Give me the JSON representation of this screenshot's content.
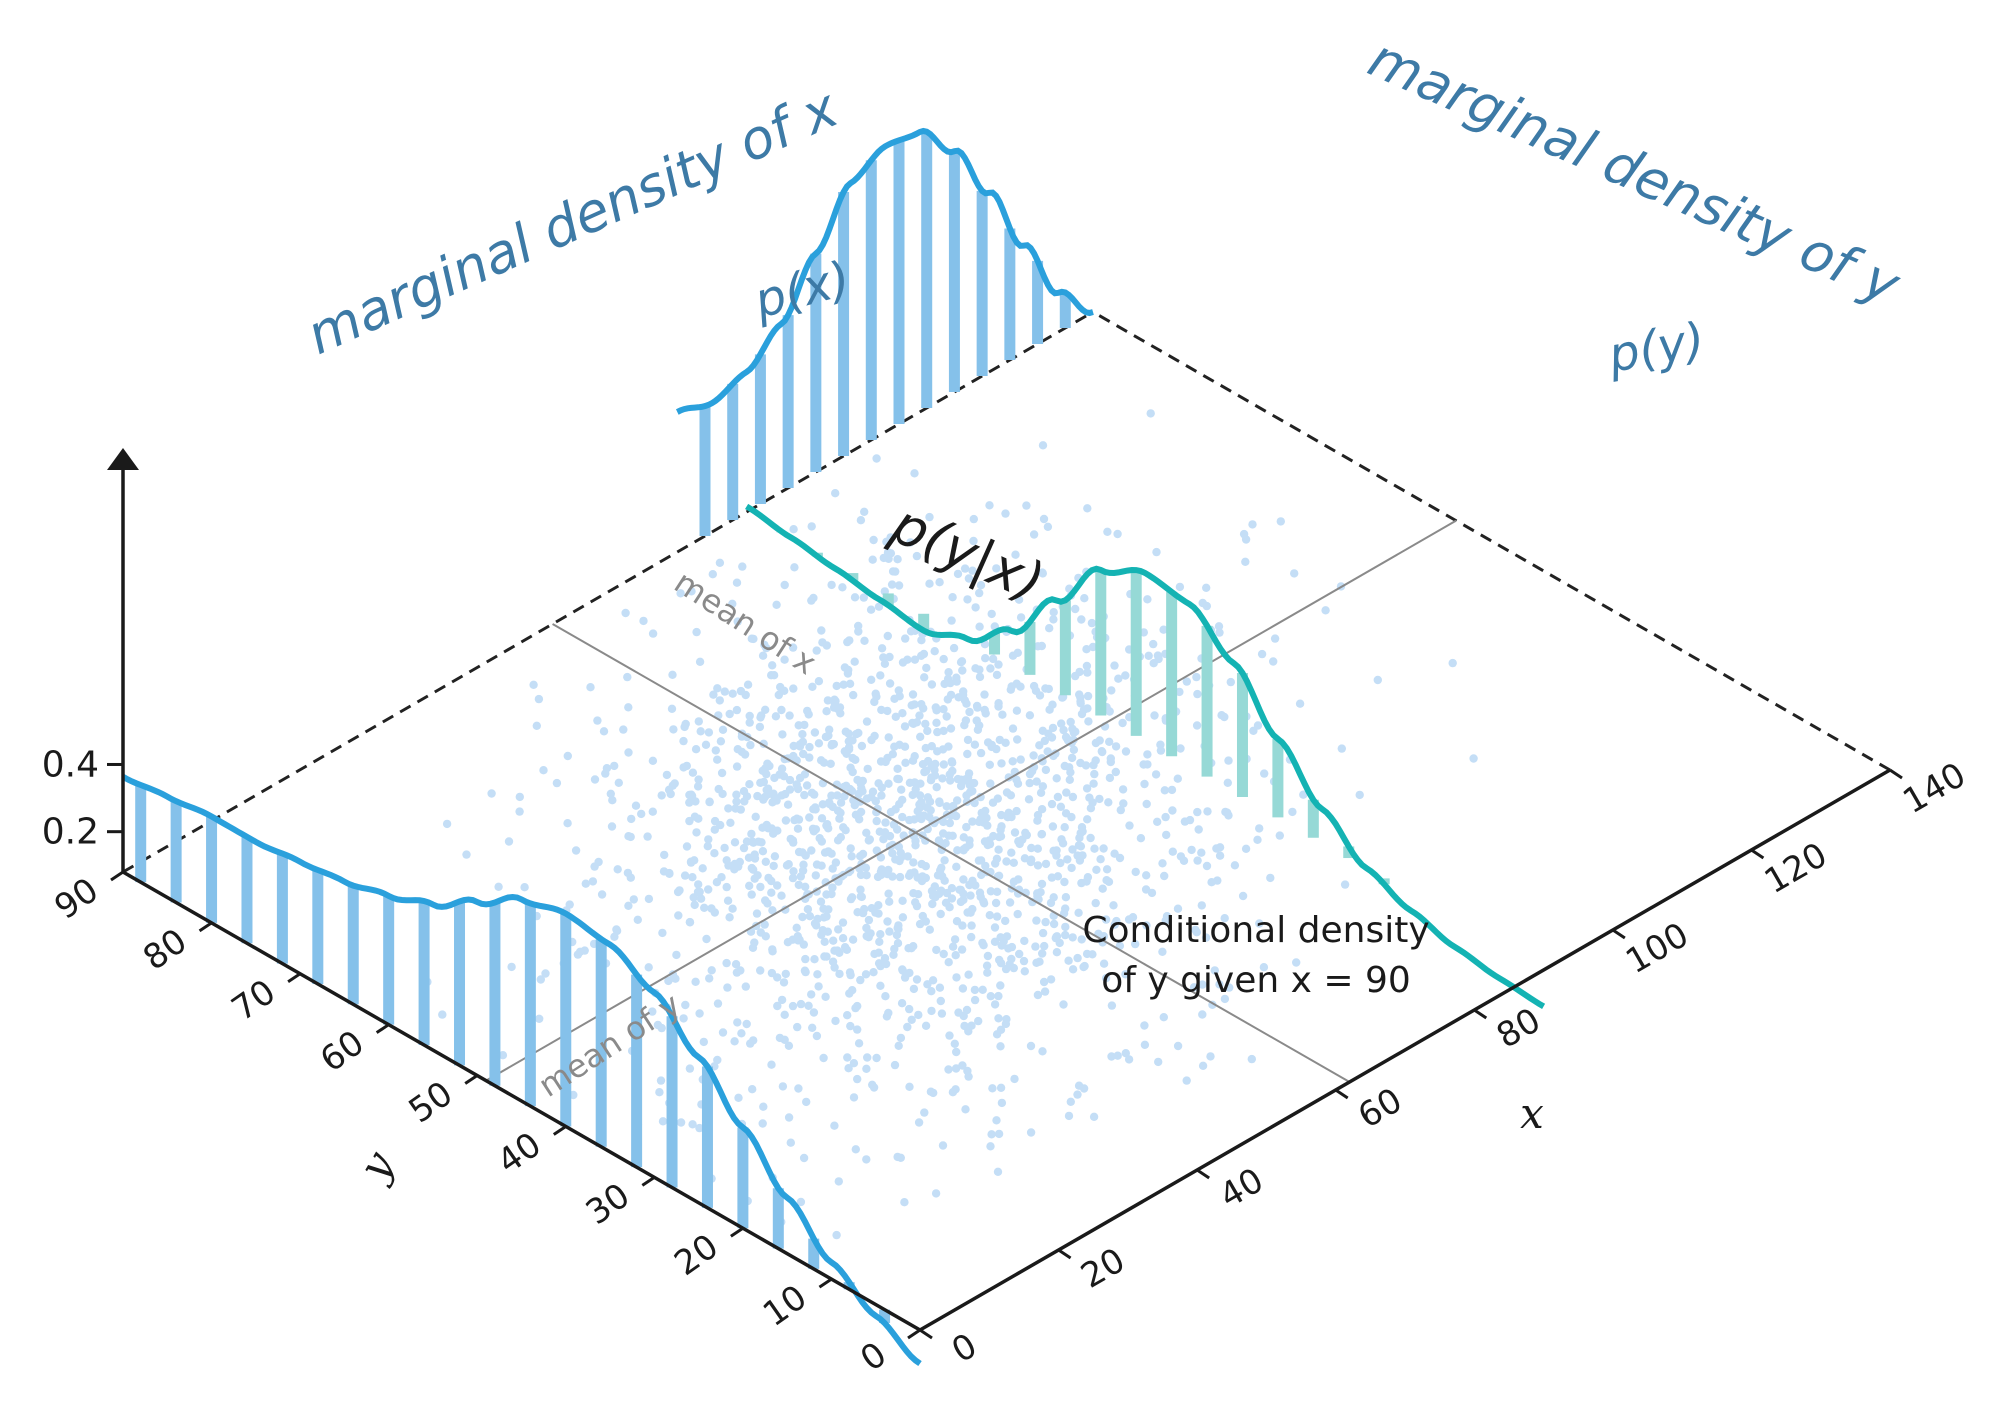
{
  "chart_data": {
    "type": "surface-3d-density",
    "x_axis": {
      "label": "x",
      "ticks": [
        "0",
        "20",
        "40",
        "60",
        "80",
        "100",
        "120",
        "140"
      ]
    },
    "y_axis": {
      "label": "y",
      "ticks": [
        "0",
        "10",
        "20",
        "30",
        "40",
        "50",
        "60",
        "70",
        "80",
        "90"
      ]
    },
    "z_axis": {
      "ticks": [
        "0.2",
        "0.4"
      ]
    },
    "marginal_x": {
      "title": "marginal density of x",
      "symbol": "p(x)",
      "y": [
        0,
        5,
        10,
        15,
        20,
        25,
        30,
        35,
        40,
        45,
        50,
        55,
        60,
        65,
        70,
        75,
        80,
        85,
        90
      ],
      "density": [
        0.02,
        0.06,
        0.11,
        0.18,
        0.26,
        0.34,
        0.41,
        0.45,
        0.46,
        0.44,
        0.39,
        0.34,
        0.31,
        0.29,
        0.28,
        0.27,
        0.27,
        0.26,
        0.25
      ]
    },
    "marginal_y": {
      "title": "marginal density of y",
      "symbol": "p(y)",
      "x": [
        80,
        85,
        90,
        95,
        100,
        105,
        110,
        115,
        120,
        125,
        130,
        135,
        140
      ],
      "density": [
        0.33,
        0.31,
        0.33,
        0.38,
        0.47,
        0.56,
        0.59,
        0.58,
        0.51,
        0.4,
        0.27,
        0.15,
        0.08
      ]
    },
    "conditional": {
      "symbol": "p(y|x)",
      "note_lines": [
        "Conditional density",
        "of y given x = 90"
      ],
      "x_given": 90,
      "y": [
        0,
        5,
        10,
        15,
        20,
        25,
        30,
        35,
        40,
        45,
        50,
        55,
        60,
        65,
        70,
        75,
        80,
        85,
        90
      ],
      "density": [
        0.015,
        0.02,
        0.03,
        0.05,
        0.08,
        0.14,
        0.22,
        0.31,
        0.37,
        0.38,
        0.34,
        0.24,
        0.14,
        0.08,
        0.05,
        0.06,
        0.07,
        0.08,
        0.09
      ]
    },
    "mean_x": {
      "label": "mean of x",
      "value": 62
    },
    "mean_y": {
      "label": "mean of y",
      "value": 49
    },
    "scatter": {
      "n_points": 1700
    },
    "colors": {
      "marginal": "#2aa0dc",
      "marginal_bar": "#85c1ea",
      "conditional": "#14b3b3",
      "conditional_bar": "#96d9d6",
      "scatter": "#c4def6",
      "axis": "#1a1a1a",
      "mean_line": "#8a8a8a"
    }
  }
}
